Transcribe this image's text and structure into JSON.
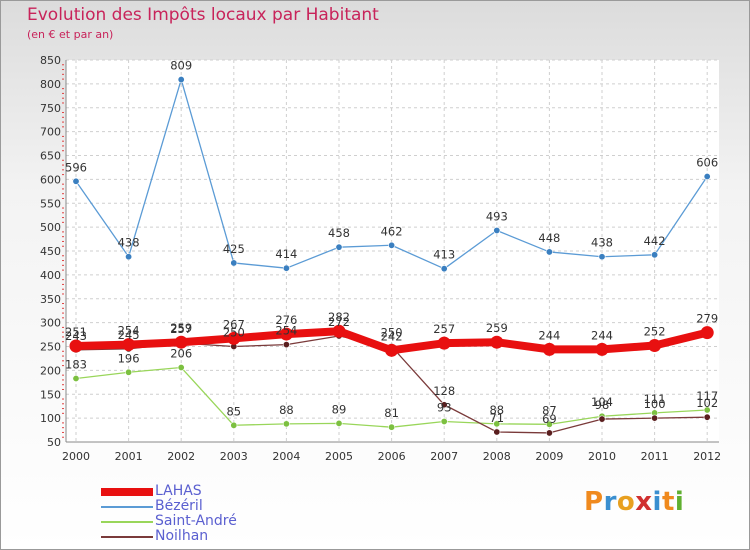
{
  "title": "Evolution des Impôts locaux par Habitant",
  "subtitle": "(en € et par an)",
  "logo": {
    "text": "Proxiti",
    "colors": [
      "#f08a1e",
      "#3a8fd0",
      "#e8a020",
      "#d03030",
      "#3a8fd0",
      "#f08a1e",
      "#60b030"
    ]
  },
  "chart_data": {
    "type": "line",
    "x": [
      "2000",
      "2001",
      "2002",
      "2003",
      "2004",
      "2005",
      "2006",
      "2007",
      "2008",
      "2009",
      "2010",
      "2011",
      "2012"
    ],
    "ylim": [
      50,
      850
    ],
    "yticks": [
      "50",
      "100",
      "150",
      "200",
      "250",
      "300",
      "350",
      "400",
      "450",
      "500",
      "550",
      "600",
      "650",
      "700",
      "750",
      "800",
      "850"
    ],
    "grid": true,
    "series": [
      {
        "name": "Bézéril",
        "color": "#5b9bd5",
        "marker": "#3a7fc0",
        "values": [
          596,
          438,
          809,
          425,
          414,
          458,
          462,
          413,
          493,
          448,
          438,
          442,
          606
        ]
      },
      {
        "name": "Saint-André",
        "color": "#99d65a",
        "marker": "#7cc040",
        "values": [
          183,
          196,
          206,
          85,
          88,
          89,
          81,
          93,
          88,
          87,
          104,
          111,
          117
        ]
      },
      {
        "name": "Noilhan",
        "color": "#7a3a3a",
        "marker": "#5a1e1e",
        "values": [
          243,
          245,
          257,
          250,
          254,
          272,
          250,
          128,
          71,
          69,
          98,
          100,
          102
        ]
      },
      {
        "name": "LAHAS",
        "color": "#e81010",
        "marker": "#e81010",
        "values": [
          251,
          254,
          259,
          267,
          276,
          282,
          242,
          257,
          259,
          244,
          244,
          252,
          279
        ]
      }
    ],
    "legend_order": [
      "LAHAS",
      "Bézéril",
      "Saint-André",
      "Noilhan"
    ]
  }
}
